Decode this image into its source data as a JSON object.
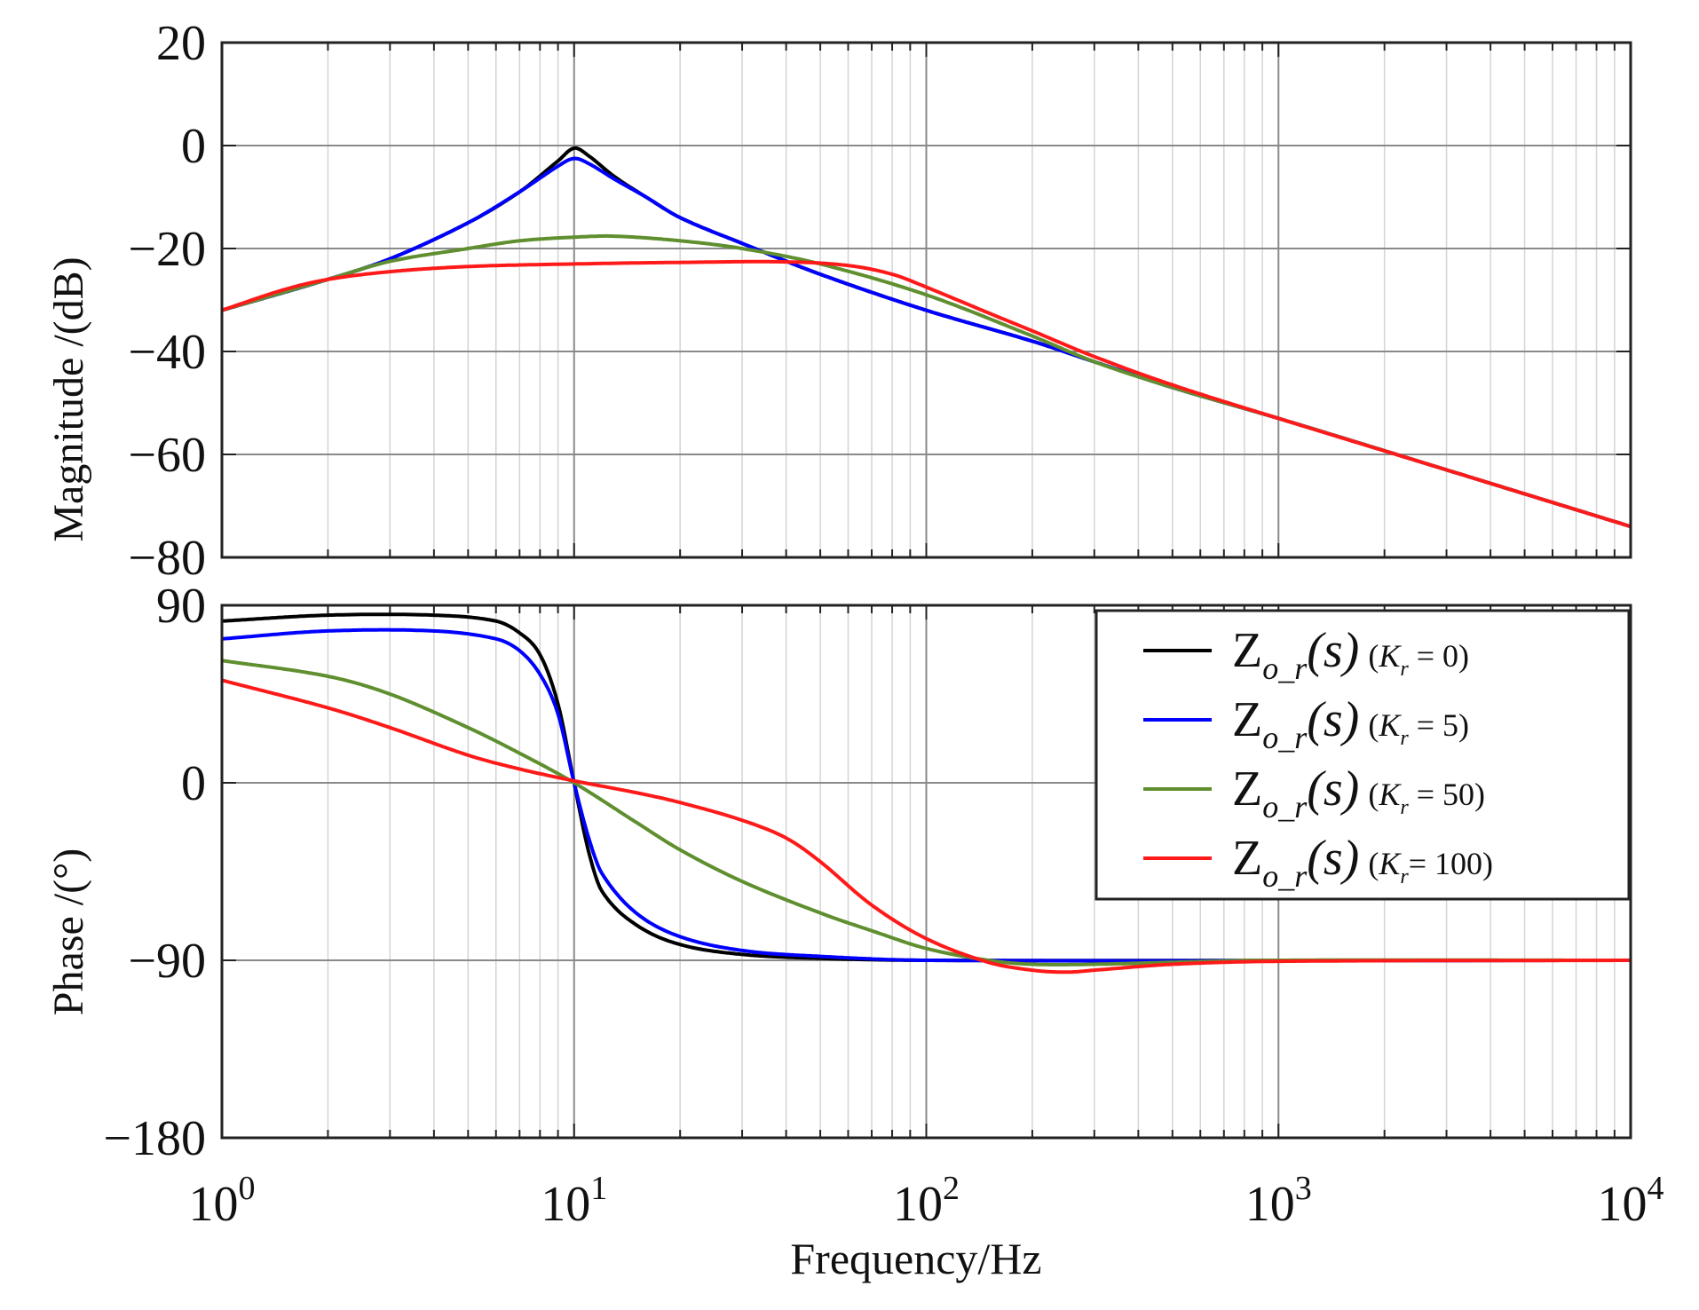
{
  "chart_data": [
    {
      "type": "line",
      "panel": "magnitude",
      "xscale": "log",
      "xlim": [
        1,
        10000
      ],
      "ylim": [
        -80,
        20
      ],
      "yticks": [
        20,
        0,
        -20,
        -40,
        -60,
        -80
      ],
      "ytick_labels": [
        "20",
        "0",
        "−20",
        "−40",
        "−60",
        "−80"
      ],
      "ylabel": "Magnitude  /(dB)",
      "grid": true,
      "series": [
        {
          "name": "Kr=0",
          "color": "#000000",
          "points": [
            [
              1,
              -32
            ],
            [
              2,
              -26
            ],
            [
              3,
              -22
            ],
            [
              5,
              -15
            ],
            [
              7,
              -9
            ],
            [
              9,
              -3
            ],
            [
              10,
              -0.5
            ],
            [
              11,
              -2
            ],
            [
              13,
              -6
            ],
            [
              16,
              -10
            ],
            [
              20,
              -14
            ],
            [
              30,
              -19
            ],
            [
              50,
              -25
            ],
            [
              100,
              -32
            ],
            [
              200,
              -38
            ],
            [
              300,
              -42
            ],
            [
              500,
              -47
            ],
            [
              1000,
              -53
            ],
            [
              3000,
              -63
            ],
            [
              10000,
              -74
            ]
          ]
        },
        {
          "name": "Kr=5",
          "color": "#0000ff",
          "points": [
            [
              1,
              -32
            ],
            [
              2,
              -26
            ],
            [
              3,
              -22
            ],
            [
              5,
              -15
            ],
            [
              7,
              -9
            ],
            [
              9,
              -4
            ],
            [
              10,
              -2.5
            ],
            [
              11,
              -3.5
            ],
            [
              13,
              -6.5
            ],
            [
              16,
              -10
            ],
            [
              20,
              -14
            ],
            [
              30,
              -19
            ],
            [
              50,
              -25
            ],
            [
              100,
              -32
            ],
            [
              200,
              -38
            ],
            [
              300,
              -42
            ],
            [
              500,
              -47
            ],
            [
              1000,
              -53
            ],
            [
              3000,
              -63
            ],
            [
              10000,
              -74
            ]
          ]
        },
        {
          "name": "Kr=50",
          "color": "#5f8f2f",
          "points": [
            [
              1,
              -32
            ],
            [
              2,
              -26
            ],
            [
              3,
              -22.5
            ],
            [
              5,
              -20
            ],
            [
              7,
              -18.5
            ],
            [
              10,
              -17.8
            ],
            [
              13,
              -17.6
            ],
            [
              20,
              -18.5
            ],
            [
              30,
              -20
            ],
            [
              50,
              -23
            ],
            [
              100,
              -29
            ],
            [
              200,
              -37
            ],
            [
              300,
              -42
            ],
            [
              500,
              -47
            ],
            [
              1000,
              -53
            ],
            [
              3000,
              -63
            ],
            [
              10000,
              -74
            ]
          ]
        },
        {
          "name": "Kr=100",
          "color": "#ff1a1a",
          "points": [
            [
              1,
              -32
            ],
            [
              1.5,
              -28
            ],
            [
              2,
              -26
            ],
            [
              3,
              -24.5
            ],
            [
              5,
              -23.5
            ],
            [
              10,
              -23
            ],
            [
              20,
              -22.7
            ],
            [
              40,
              -22.6
            ],
            [
              60,
              -23.3
            ],
            [
              80,
              -25
            ],
            [
              100,
              -27.5
            ],
            [
              150,
              -32.5
            ],
            [
              200,
              -36
            ],
            [
              300,
              -41
            ],
            [
              500,
              -46.5
            ],
            [
              1000,
              -53
            ],
            [
              3000,
              -63
            ],
            [
              10000,
              -74
            ]
          ]
        }
      ]
    },
    {
      "type": "line",
      "panel": "phase",
      "xscale": "log",
      "xlim": [
        1,
        10000
      ],
      "ylim": [
        -180,
        90
      ],
      "yticks": [
        90,
        0,
        -90,
        -180
      ],
      "ytick_labels": [
        "90",
        "0",
        "−90",
        "−180"
      ],
      "xticks": [
        1,
        10,
        100,
        1000,
        10000
      ],
      "xtick_labels": [
        "10",
        "10",
        "10",
        "10",
        "10"
      ],
      "xtick_exponents": [
        "0",
        "1",
        "2",
        "3",
        "4"
      ],
      "ylabel": "Phase   /(°)",
      "xlabel": "Frequency/Hz",
      "grid": true,
      "legend_position": "top-right",
      "series": [
        {
          "name": "Kr=0",
          "color": "#000000",
          "points": [
            [
              1,
              82
            ],
            [
              2,
              85
            ],
            [
              4,
              85
            ],
            [
              6,
              82
            ],
            [
              7,
              76
            ],
            [
              8,
              65
            ],
            [
              9,
              40
            ],
            [
              10,
              0
            ],
            [
              11,
              -35
            ],
            [
              12,
              -55
            ],
            [
              15,
              -72
            ],
            [
              20,
              -82
            ],
            [
              30,
              -87
            ],
            [
              50,
              -89
            ],
            [
              100,
              -90
            ],
            [
              10000,
              -90
            ]
          ]
        },
        {
          "name": "Kr=5",
          "color": "#0000ff",
          "points": [
            [
              1,
              73
            ],
            [
              2,
              77
            ],
            [
              4,
              77
            ],
            [
              6,
              73
            ],
            [
              7,
              67
            ],
            [
              8,
              55
            ],
            [
              9,
              35
            ],
            [
              10,
              0
            ],
            [
              11,
              -28
            ],
            [
              12,
              -46
            ],
            [
              15,
              -66
            ],
            [
              20,
              -78
            ],
            [
              30,
              -85
            ],
            [
              50,
              -88
            ],
            [
              100,
              -90
            ],
            [
              10000,
              -90
            ]
          ]
        },
        {
          "name": "Kr=50",
          "color": "#5f8f2f",
          "points": [
            [
              1,
              62
            ],
            [
              2,
              54
            ],
            [
              3,
              45
            ],
            [
              5,
              28
            ],
            [
              7,
              15
            ],
            [
              10,
              0
            ],
            [
              15,
              -20
            ],
            [
              20,
              -34
            ],
            [
              30,
              -50
            ],
            [
              50,
              -66
            ],
            [
              70,
              -75
            ],
            [
              100,
              -84
            ],
            [
              150,
              -90
            ],
            [
              200,
              -92
            ],
            [
              300,
              -92
            ],
            [
              500,
              -91
            ],
            [
              1000,
              -90
            ],
            [
              10000,
              -90
            ]
          ]
        },
        {
          "name": "Kr=100",
          "color": "#ff1a1a",
          "points": [
            [
              1,
              52
            ],
            [
              2,
              38
            ],
            [
              3,
              28
            ],
            [
              5,
              14
            ],
            [
              7,
              7
            ],
            [
              10,
              1
            ],
            [
              15,
              -5
            ],
            [
              20,
              -10
            ],
            [
              30,
              -19
            ],
            [
              40,
              -28
            ],
            [
              50,
              -40
            ],
            [
              70,
              -62
            ],
            [
              100,
              -79
            ],
            [
              150,
              -91
            ],
            [
              200,
              -95
            ],
            [
              250,
              -96
            ],
            [
              300,
              -95
            ],
            [
              500,
              -92
            ],
            [
              1000,
              -90.5
            ],
            [
              10000,
              -90
            ]
          ]
        }
      ]
    }
  ],
  "legend": {
    "entries": [
      {
        "symbol": "Z",
        "subscript": "o_r",
        "arg": "(s)",
        "param": "K",
        "param_sub": "r",
        "rest": " = 0",
        "color": "#000000"
      },
      {
        "symbol": "Z",
        "subscript": "o_r",
        "arg": "(s)",
        "param": "K",
        "param_sub": "r",
        "rest": " = 5",
        "color": "#0000ff"
      },
      {
        "symbol": "Z",
        "subscript": "o_r",
        "arg": "(s)",
        "param": "K",
        "param_sub": "r",
        "rest": " = 50",
        "color": "#5f8f2f"
      },
      {
        "symbol": "Z",
        "subscript": "o_r",
        "arg": "(s)",
        "param": "K",
        "param_sub": "r",
        "rest": "= 100",
        "color": "#ff1a1a"
      }
    ]
  }
}
